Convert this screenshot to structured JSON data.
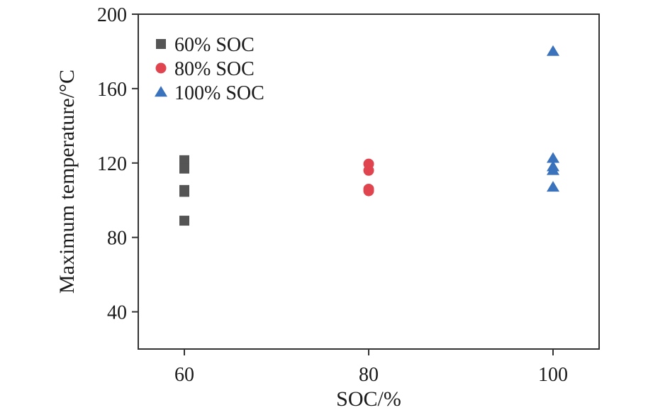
{
  "chart_data": {
    "type": "scatter",
    "xlabel": "SOC/%",
    "ylabel": "Maximum temperature/°C",
    "xlim": [
      55,
      105
    ],
    "ylim": [
      20,
      200
    ],
    "xticks": [
      60,
      80,
      100
    ],
    "yticks": [
      40,
      80,
      120,
      160,
      200
    ],
    "grid": false,
    "legend_position": "top-left",
    "series": [
      {
        "name": "60% SOC",
        "marker": "square",
        "color": "#555555",
        "points": [
          [
            60,
            121.5
          ],
          [
            60,
            117
          ],
          [
            60,
            105.5
          ],
          [
            60,
            104.5
          ],
          [
            60,
            89
          ]
        ]
      },
      {
        "name": "80% SOC",
        "marker": "circle",
        "color": "#e0454f",
        "points": [
          [
            80,
            119.5
          ],
          [
            80,
            116
          ],
          [
            80,
            106
          ],
          [
            80,
            105
          ]
        ]
      },
      {
        "name": "100% SOC",
        "marker": "triangle",
        "color": "#3a72bc",
        "points": [
          [
            100,
            180
          ],
          [
            100,
            122.5
          ],
          [
            100,
            118
          ],
          [
            100,
            116
          ],
          [
            100,
            107
          ]
        ]
      }
    ]
  }
}
